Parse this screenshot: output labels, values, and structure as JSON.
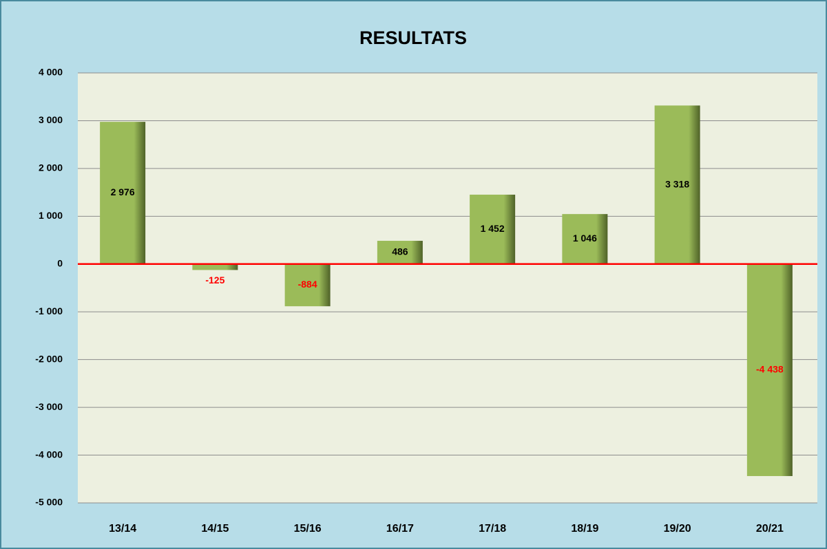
{
  "chart_data": {
    "type": "bar",
    "title": "RESULTATS",
    "categories": [
      "13/14",
      "14/15",
      "15/16",
      "16/17",
      "17/18",
      "18/19",
      "19/20",
      "20/21"
    ],
    "values": [
      2976,
      -125,
      -884,
      486,
      1452,
      1046,
      3318,
      -4438
    ],
    "value_labels": [
      "2 976",
      "-125",
      "-884",
      "486",
      "1 452",
      "1 046",
      "3 318",
      "-4 438"
    ],
    "color": "#9bbb59",
    "label_color": "#000000",
    "negative_label_color": "#ff0000",
    "zero_line_color": "#ff0000",
    "ylim": [
      -5000,
      4000
    ],
    "yticks": [
      {
        "value": -5000,
        "label": "-5 000"
      },
      {
        "value": -4000,
        "label": "-4 000"
      },
      {
        "value": -3000,
        "label": "-3 000"
      },
      {
        "value": -2000,
        "label": "-2 000"
      },
      {
        "value": -1000,
        "label": "-1 000"
      },
      0,
      {
        "value": 1000,
        "label": "1 000"
      },
      {
        "value": 2000,
        "label": "2 000"
      },
      {
        "value": 3000,
        "label": "3 000"
      },
      {
        "value": 4000,
        "label": "4 000"
      }
    ],
    "grid": true
  }
}
